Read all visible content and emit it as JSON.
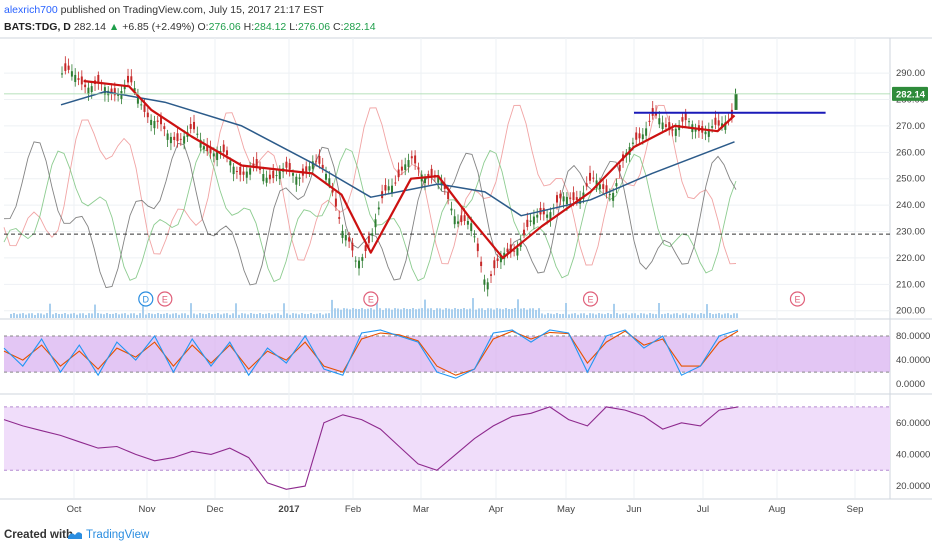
{
  "header": {
    "author": "alexrich700",
    "published_text": "published on TradingView.com, July 15, 2017 21:17 EST",
    "symbol_label": "BATS:TDG, D",
    "last_price": "282.14",
    "change_arrow": "▲",
    "change": "+6.85 (+2.49%)",
    "o_label": "O:",
    "o_value": "276.06",
    "h_label": "H:",
    "h_value": "284.12",
    "l_label": "L:",
    "l_value": "276.06",
    "c_label": "C:",
    "c_value": "282.14"
  },
  "footer": {
    "created_with": "Created with",
    "brand": "TradingView"
  },
  "colors": {
    "up_candle": "#2e7d32",
    "down_candle": "#c62828",
    "ma_short": "#cc1111",
    "ma_long": "#2c5b8a",
    "trendline": "#1a1ab8",
    "stoch_k": "#2196f3",
    "stoch_d": "#e65100",
    "stoch_band": "#d9b3f0",
    "rsi_line": "#8e2a8e",
    "rsi_band": "#f0ddfa",
    "volume": "#a9cfee",
    "osc_red": "#ef9a9a",
    "osc_green": "#81c784",
    "osc_gray": "#757575"
  },
  "chart_data": [
    {
      "type": "candlestick",
      "title": "BATS:TDG, D",
      "x_tick_labels": [
        "Oct",
        "Nov",
        "Dec",
        "2017",
        "Feb",
        "Mar",
        "Apr",
        "May",
        "Jun",
        "Jul",
        "Aug",
        "Sep"
      ],
      "y_tick_labels": [
        "290.00",
        "280.00",
        "270.00",
        "260.00",
        "250.00",
        "240.00",
        "230.00",
        "220.00",
        "210.00",
        "200.00"
      ],
      "ylim": [
        198,
        298
      ],
      "last_price_label": "282.14",
      "close_series": [
        {
          "date": "Sep 26",
          "close": 290
        },
        {
          "date": "Oct 5",
          "close": 287
        },
        {
          "date": "Oct 14",
          "close": 283
        },
        {
          "date": "Oct 24",
          "close": 285
        },
        {
          "date": "Oct 31",
          "close": 276
        },
        {
          "date": "Nov 9",
          "close": 266
        },
        {
          "date": "Nov 21",
          "close": 267
        },
        {
          "date": "Dec 1",
          "close": 260
        },
        {
          "date": "Dec 12",
          "close": 253
        },
        {
          "date": "Dec 22",
          "close": 252
        },
        {
          "date": "Jan 4",
          "close": 252
        },
        {
          "date": "Jan 12",
          "close": 255
        },
        {
          "date": "Jan 20",
          "close": 252
        },
        {
          "date": "Jan 26",
          "close": 229
        },
        {
          "date": "Feb 2",
          "close": 219
        },
        {
          "date": "Feb 9",
          "close": 228
        },
        {
          "date": "Feb 16",
          "close": 248
        },
        {
          "date": "Feb 27",
          "close": 256
        },
        {
          "date": "Mar 8",
          "close": 249
        },
        {
          "date": "Mar 16",
          "close": 235
        },
        {
          "date": "Mar 21",
          "close": 231
        },
        {
          "date": "Mar 27",
          "close": 212
        },
        {
          "date": "Apr 4",
          "close": 220
        },
        {
          "date": "Apr 12",
          "close": 228
        },
        {
          "date": "Apr 21",
          "close": 238
        },
        {
          "date": "May 2",
          "close": 242
        },
        {
          "date": "May 12",
          "close": 248
        },
        {
          "date": "May 22",
          "close": 246
        },
        {
          "date": "Jun 1",
          "close": 266
        },
        {
          "date": "Jun 9",
          "close": 272
        },
        {
          "date": "Jun 19",
          "close": 270
        },
        {
          "date": "Jun 29",
          "close": 270
        },
        {
          "date": "Jul 7",
          "close": 268
        },
        {
          "date": "Jul 13",
          "close": 276
        },
        {
          "date": "Jul 14",
          "close": 282
        }
      ],
      "ma_short": [
        {
          "date": "Oct 5",
          "value": 287
        },
        {
          "date": "Oct 24",
          "value": 285
        },
        {
          "date": "Nov 3",
          "value": 276
        },
        {
          "date": "Nov 21",
          "value": 266
        },
        {
          "date": "Dec 12",
          "value": 255
        },
        {
          "date": "Jan 12",
          "value": 252
        },
        {
          "date": "Jan 26",
          "value": 244
        },
        {
          "date": "Feb 9",
          "value": 222
        },
        {
          "date": "Feb 27",
          "value": 250
        },
        {
          "date": "Mar 8",
          "value": 251
        },
        {
          "date": "Mar 21",
          "value": 235
        },
        {
          "date": "Apr 4",
          "value": 220
        },
        {
          "date": "Apr 21",
          "value": 232
        },
        {
          "date": "May 12",
          "value": 245
        },
        {
          "date": "Jun 1",
          "value": 262
        },
        {
          "date": "Jun 19",
          "value": 270
        },
        {
          "date": "Jul 7",
          "value": 268
        },
        {
          "date": "Jul 14",
          "value": 274
        }
      ],
      "ma_long": [
        {
          "date": "Sep 26",
          "value": 278
        },
        {
          "date": "Oct 14",
          "value": 283
        },
        {
          "date": "Nov 9",
          "value": 279
        },
        {
          "date": "Dec 12",
          "value": 270
        },
        {
          "date": "Jan 12",
          "value": 256
        },
        {
          "date": "Feb 9",
          "value": 243
        },
        {
          "date": "Mar 8",
          "value": 248
        },
        {
          "date": "Mar 27",
          "value": 245
        },
        {
          "date": "Apr 12",
          "value": 236
        },
        {
          "date": "May 12",
          "value": 242
        },
        {
          "date": "Jun 9",
          "value": 252
        },
        {
          "date": "Jul 14",
          "value": 264
        }
      ],
      "horizontal_level": 229,
      "trendline": {
        "from_date": "Jun 1",
        "to_date": "Aug 20",
        "value": 275
      },
      "events": [
        {
          "label": "D",
          "date": "Oct 31"
        },
        {
          "label": "E",
          "date": "Nov 9"
        },
        {
          "label": "E",
          "date": "Feb 9"
        },
        {
          "label": "E",
          "date": "May 12"
        },
        {
          "label": "E",
          "date": "Aug 9"
        }
      ]
    },
    {
      "type": "line",
      "title": "Stochastic",
      "y_tick_labels": [
        "80.0000",
        "40.0000",
        "0.0000"
      ],
      "ylim": [
        -8,
        100
      ],
      "upper_band": 80,
      "lower_band": 20,
      "series": [
        {
          "values": [
            60,
            30,
            75,
            20,
            65,
            15,
            70,
            40,
            80,
            20,
            75,
            30,
            70,
            15,
            60,
            35,
            80,
            25,
            15,
            85,
            90,
            80,
            70,
            20,
            10,
            25,
            85,
            90,
            70,
            90,
            85,
            20,
            80,
            90,
            60,
            80,
            15,
            30,
            80,
            90
          ]
        },
        {
          "values": [
            55,
            40,
            65,
            30,
            55,
            25,
            60,
            45,
            70,
            30,
            65,
            35,
            65,
            25,
            55,
            40,
            70,
            30,
            20,
            75,
            85,
            82,
            72,
            30,
            15,
            25,
            75,
            88,
            75,
            86,
            84,
            35,
            70,
            88,
            65,
            75,
            30,
            30,
            70,
            88
          ]
        }
      ]
    },
    {
      "type": "line",
      "title": "RSI",
      "y_tick_labels": [
        "60.0000",
        "40.0000",
        "20.0000"
      ],
      "ylim": [
        15,
        75
      ],
      "upper_band": 70,
      "lower_band": 30,
      "series": [
        {
          "values": [
            62,
            58,
            55,
            52,
            48,
            44,
            45,
            40,
            36,
            38,
            42,
            40,
            44,
            38,
            22,
            18,
            20,
            60,
            65,
            62,
            56,
            45,
            34,
            30,
            40,
            50,
            58,
            64,
            66,
            70,
            62,
            58,
            70,
            68,
            64,
            56,
            60,
            58,
            68,
            70
          ]
        }
      ]
    }
  ]
}
